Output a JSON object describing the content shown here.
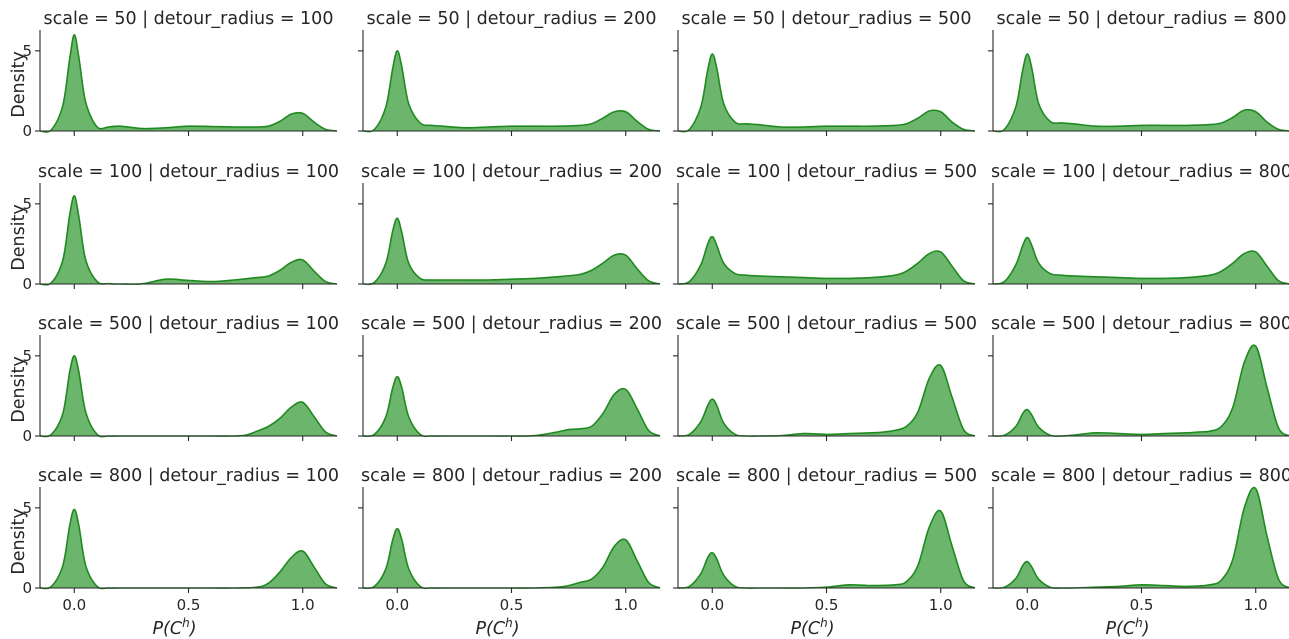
{
  "chart_data": {
    "type": "area",
    "layout": "facet-grid",
    "rows": 4,
    "cols": 4,
    "xlabel_main": "P(C",
    "xlabel_sup": "h",
    "xlabel_tail": ")",
    "ylabel": "Density",
    "xlim": [
      -0.15,
      1.15
    ],
    "ylim": [
      0,
      6.3
    ],
    "xticks": [
      0.0,
      0.5,
      1.0
    ],
    "xtick_labels": [
      "0.0",
      "0.5",
      "1.0"
    ],
    "yticks": [
      0,
      5
    ],
    "ytick_labels": [
      "0",
      "5"
    ],
    "colors": {
      "fill": "#2e962e",
      "line": "#1f8a1f"
    },
    "panels": [
      {
        "title": "scale = 50 | detour_radius = 100",
        "x": [
          -0.15,
          -0.1,
          -0.05,
          -0.02,
          0.0,
          0.02,
          0.05,
          0.1,
          0.15,
          0.2,
          0.3,
          0.4,
          0.5,
          0.6,
          0.7,
          0.8,
          0.85,
          0.9,
          0.95,
          1.0,
          1.05,
          1.1,
          1.15
        ],
        "y": [
          0.0,
          0.08,
          1.6,
          4.5,
          6.0,
          4.6,
          1.8,
          0.25,
          0.25,
          0.3,
          0.15,
          0.2,
          0.3,
          0.28,
          0.25,
          0.25,
          0.3,
          0.6,
          1.05,
          1.1,
          0.55,
          0.1,
          0.0
        ]
      },
      {
        "title": "scale = 50 | detour_radius = 200",
        "x": [
          -0.15,
          -0.1,
          -0.05,
          -0.02,
          0.0,
          0.02,
          0.05,
          0.1,
          0.15,
          0.2,
          0.3,
          0.4,
          0.5,
          0.6,
          0.7,
          0.8,
          0.85,
          0.9,
          0.95,
          1.0,
          1.05,
          1.1,
          1.15
        ],
        "y": [
          0.0,
          0.1,
          1.5,
          3.9,
          5.0,
          4.0,
          1.7,
          0.5,
          0.35,
          0.3,
          0.2,
          0.25,
          0.3,
          0.3,
          0.3,
          0.35,
          0.45,
          0.8,
          1.2,
          1.2,
          0.6,
          0.1,
          0.0
        ]
      },
      {
        "title": "scale = 50 | detour_radius = 500",
        "x": [
          -0.15,
          -0.1,
          -0.05,
          -0.02,
          0.0,
          0.02,
          0.05,
          0.1,
          0.15,
          0.2,
          0.3,
          0.4,
          0.5,
          0.6,
          0.7,
          0.8,
          0.85,
          0.9,
          0.95,
          1.0,
          1.05,
          1.1,
          1.15
        ],
        "y": [
          0.0,
          0.1,
          1.5,
          3.8,
          4.8,
          3.9,
          1.7,
          0.55,
          0.45,
          0.4,
          0.25,
          0.25,
          0.3,
          0.3,
          0.3,
          0.35,
          0.45,
          0.8,
          1.25,
          1.2,
          0.55,
          0.1,
          0.0
        ]
      },
      {
        "title": "scale = 50 | detour_radius = 800",
        "x": [
          -0.15,
          -0.1,
          -0.05,
          -0.02,
          0.0,
          0.02,
          0.05,
          0.1,
          0.15,
          0.2,
          0.3,
          0.4,
          0.5,
          0.6,
          0.7,
          0.8,
          0.85,
          0.9,
          0.95,
          1.0,
          1.05,
          1.1,
          1.15
        ],
        "y": [
          0.0,
          0.1,
          1.5,
          3.8,
          4.8,
          3.9,
          1.7,
          0.6,
          0.5,
          0.45,
          0.3,
          0.3,
          0.35,
          0.35,
          0.35,
          0.4,
          0.5,
          0.85,
          1.3,
          1.2,
          0.55,
          0.1,
          0.0
        ]
      },
      {
        "title": "scale = 100 | detour_radius = 100",
        "x": [
          -0.15,
          -0.1,
          -0.05,
          -0.02,
          0.0,
          0.02,
          0.05,
          0.1,
          0.15,
          0.2,
          0.3,
          0.4,
          0.5,
          0.6,
          0.7,
          0.8,
          0.85,
          0.9,
          0.95,
          1.0,
          1.05,
          1.1,
          1.15
        ],
        "y": [
          0.0,
          0.08,
          1.5,
          4.3,
          5.5,
          4.2,
          1.5,
          0.15,
          0.02,
          0.0,
          0.02,
          0.3,
          0.22,
          0.15,
          0.25,
          0.4,
          0.5,
          0.85,
          1.35,
          1.5,
          0.8,
          0.15,
          0.0
        ]
      },
      {
        "title": "scale = 100 | detour_radius = 200",
        "x": [
          -0.15,
          -0.1,
          -0.05,
          -0.02,
          0.0,
          0.02,
          0.05,
          0.1,
          0.15,
          0.2,
          0.3,
          0.4,
          0.5,
          0.6,
          0.7,
          0.8,
          0.85,
          0.9,
          0.95,
          1.0,
          1.05,
          1.1,
          1.15
        ],
        "y": [
          0.0,
          0.1,
          1.3,
          3.3,
          4.1,
          3.2,
          1.3,
          0.35,
          0.25,
          0.25,
          0.25,
          0.25,
          0.3,
          0.35,
          0.45,
          0.6,
          0.85,
          1.3,
          1.8,
          1.8,
          0.95,
          0.2,
          0.0
        ]
      },
      {
        "title": "scale = 100 | detour_radius = 500",
        "x": [
          -0.15,
          -0.1,
          -0.05,
          -0.02,
          0.0,
          0.02,
          0.05,
          0.1,
          0.15,
          0.2,
          0.3,
          0.4,
          0.5,
          0.6,
          0.7,
          0.8,
          0.85,
          0.9,
          0.95,
          1.0,
          1.05,
          1.1,
          1.15
        ],
        "y": [
          0.0,
          0.15,
          1.2,
          2.5,
          2.95,
          2.4,
          1.3,
          0.65,
          0.55,
          0.5,
          0.45,
          0.4,
          0.35,
          0.35,
          0.4,
          0.55,
          0.8,
          1.3,
          1.9,
          2.0,
          1.1,
          0.2,
          0.0
        ]
      },
      {
        "title": "scale = 100 | detour_radius = 800",
        "x": [
          -0.15,
          -0.1,
          -0.05,
          -0.02,
          0.0,
          0.02,
          0.05,
          0.1,
          0.15,
          0.2,
          0.3,
          0.4,
          0.5,
          0.6,
          0.7,
          0.8,
          0.85,
          0.9,
          0.95,
          1.0,
          1.05,
          1.1,
          1.15
        ],
        "y": [
          0.0,
          0.15,
          1.2,
          2.4,
          2.9,
          2.4,
          1.3,
          0.65,
          0.55,
          0.5,
          0.45,
          0.4,
          0.35,
          0.35,
          0.4,
          0.55,
          0.8,
          1.3,
          1.9,
          2.0,
          1.1,
          0.2,
          0.0
        ]
      },
      {
        "title": "scale = 500 | detour_radius = 100",
        "x": [
          -0.15,
          -0.1,
          -0.05,
          -0.02,
          0.0,
          0.02,
          0.05,
          0.1,
          0.15,
          0.2,
          0.3,
          0.4,
          0.5,
          0.6,
          0.7,
          0.75,
          0.8,
          0.85,
          0.9,
          0.95,
          1.0,
          1.05,
          1.1,
          1.15
        ],
        "y": [
          0.0,
          0.1,
          1.4,
          4.0,
          5.0,
          4.0,
          1.5,
          0.1,
          0.0,
          0.0,
          0.0,
          0.0,
          0.0,
          0.0,
          0.0,
          0.05,
          0.3,
          0.6,
          1.1,
          1.8,
          2.1,
          1.2,
          0.25,
          0.0
        ]
      },
      {
        "title": "scale = 500 | detour_radius = 200",
        "x": [
          -0.15,
          -0.1,
          -0.05,
          -0.02,
          0.0,
          0.02,
          0.05,
          0.1,
          0.15,
          0.2,
          0.3,
          0.4,
          0.5,
          0.6,
          0.7,
          0.75,
          0.8,
          0.85,
          0.9,
          0.95,
          1.0,
          1.05,
          1.1,
          1.15
        ],
        "y": [
          0.0,
          0.1,
          1.2,
          3.0,
          3.7,
          3.0,
          1.2,
          0.1,
          0.0,
          0.0,
          0.0,
          0.0,
          0.0,
          0.02,
          0.25,
          0.4,
          0.45,
          0.6,
          1.4,
          2.6,
          2.9,
          1.7,
          0.35,
          0.0
        ]
      },
      {
        "title": "scale = 500 | detour_radius = 500",
        "x": [
          -0.15,
          -0.1,
          -0.05,
          -0.02,
          0.0,
          0.02,
          0.05,
          0.1,
          0.15,
          0.2,
          0.3,
          0.4,
          0.5,
          0.6,
          0.7,
          0.75,
          0.8,
          0.85,
          0.9,
          0.95,
          1.0,
          1.05,
          1.1,
          1.15
        ],
        "y": [
          0.0,
          0.1,
          0.9,
          1.9,
          2.3,
          1.9,
          0.8,
          0.1,
          0.0,
          0.0,
          0.02,
          0.15,
          0.1,
          0.15,
          0.2,
          0.25,
          0.35,
          0.6,
          1.5,
          3.6,
          4.4,
          2.4,
          0.4,
          0.0
        ]
      },
      {
        "title": "scale = 500 | detour_radius = 800",
        "x": [
          -0.15,
          -0.1,
          -0.05,
          -0.02,
          0.0,
          0.02,
          0.05,
          0.1,
          0.15,
          0.2,
          0.3,
          0.4,
          0.5,
          0.6,
          0.7,
          0.75,
          0.8,
          0.85,
          0.9,
          0.95,
          1.0,
          1.05,
          1.1,
          1.15
        ],
        "y": [
          0.0,
          0.05,
          0.6,
          1.4,
          1.65,
          1.3,
          0.55,
          0.05,
          0.0,
          0.05,
          0.2,
          0.15,
          0.1,
          0.15,
          0.2,
          0.25,
          0.3,
          0.6,
          1.8,
          4.6,
          5.6,
          3.0,
          0.5,
          0.0
        ]
      },
      {
        "title": "scale = 800 | detour_radius = 100",
        "x": [
          -0.15,
          -0.1,
          -0.05,
          -0.02,
          0.0,
          0.02,
          0.05,
          0.1,
          0.15,
          0.2,
          0.3,
          0.4,
          0.5,
          0.6,
          0.7,
          0.8,
          0.85,
          0.9,
          0.95,
          1.0,
          1.05,
          1.1,
          1.15
        ],
        "y": [
          0.0,
          0.1,
          1.4,
          3.9,
          4.9,
          3.9,
          1.4,
          0.1,
          0.0,
          0.0,
          0.0,
          0.0,
          0.0,
          0.0,
          0.0,
          0.05,
          0.3,
          1.0,
          1.9,
          2.3,
          1.3,
          0.25,
          0.0
        ]
      },
      {
        "title": "scale = 800 | detour_radius = 200",
        "x": [
          -0.15,
          -0.1,
          -0.05,
          -0.02,
          0.0,
          0.02,
          0.05,
          0.1,
          0.15,
          0.2,
          0.3,
          0.4,
          0.5,
          0.6,
          0.7,
          0.75,
          0.8,
          0.85,
          0.9,
          0.95,
          1.0,
          1.05,
          1.1,
          1.15
        ],
        "y": [
          0.0,
          0.1,
          1.2,
          3.0,
          3.7,
          3.0,
          1.2,
          0.1,
          0.0,
          0.0,
          0.0,
          0.0,
          0.0,
          0.0,
          0.05,
          0.15,
          0.35,
          0.55,
          1.3,
          2.6,
          3.0,
          1.7,
          0.35,
          0.0
        ]
      },
      {
        "title": "scale = 800 | detour_radius = 500",
        "x": [
          -0.15,
          -0.1,
          -0.05,
          -0.02,
          0.0,
          0.02,
          0.05,
          0.1,
          0.15,
          0.2,
          0.3,
          0.4,
          0.5,
          0.6,
          0.7,
          0.8,
          0.85,
          0.9,
          0.95,
          1.0,
          1.05,
          1.1,
          1.15
        ],
        "y": [
          0.0,
          0.1,
          0.9,
          1.9,
          2.2,
          1.8,
          0.8,
          0.1,
          0.0,
          0.0,
          0.0,
          0.0,
          0.05,
          0.2,
          0.15,
          0.2,
          0.4,
          1.4,
          3.8,
          4.8,
          2.6,
          0.45,
          0.0
        ]
      },
      {
        "title": "scale = 800 | detour_radius = 800",
        "x": [
          -0.15,
          -0.1,
          -0.05,
          -0.02,
          0.0,
          0.02,
          0.05,
          0.1,
          0.15,
          0.2,
          0.3,
          0.4,
          0.5,
          0.6,
          0.7,
          0.8,
          0.85,
          0.9,
          0.95,
          1.0,
          1.05,
          1.1,
          1.15
        ],
        "y": [
          0.0,
          0.05,
          0.6,
          1.4,
          1.65,
          1.3,
          0.55,
          0.05,
          0.0,
          0.0,
          0.05,
          0.1,
          0.2,
          0.15,
          0.1,
          0.2,
          0.5,
          1.8,
          5.0,
          6.2,
          3.2,
          0.55,
          0.0
        ]
      }
    ]
  }
}
